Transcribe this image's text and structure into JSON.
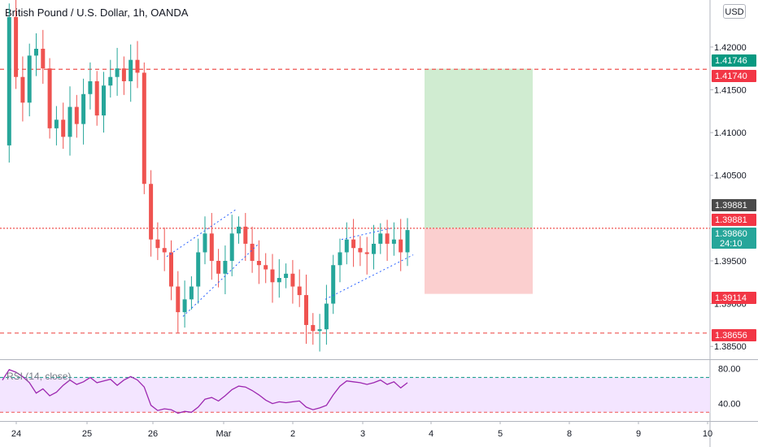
{
  "header": {
    "title": "British Pound / U.S. Dollar, 1h, OANDA",
    "currency_button": "USD"
  },
  "colors": {
    "up": "#26a69a",
    "down": "#ef5350",
    "ma": "#434651",
    "take_profit_zone": "#d0ecd1",
    "stop_zone": "#fbcfcf",
    "price_tag_teal": "#26a69a",
    "price_tag_red": "#f23645",
    "price_tag_green": "#089981",
    "price_tag_dark": "#4a4a4a",
    "rsi_line": "#9c27b0",
    "rsi_band": "#f3e5ff",
    "rsi_level": "#089981",
    "channel": "#2962ff"
  },
  "chart_data": [
    {
      "type": "candlestick",
      "title": "British Pound / U.S. Dollar, 1h, OANDA",
      "ylim": [
        1.3835,
        1.4255
      ],
      "y_ticks": [
        "1.38500",
        "1.39000",
        "1.39500",
        "1.40500",
        "1.41000",
        "1.41500",
        "1.42000"
      ],
      "x_ticks": [
        "24",
        "25",
        "26",
        "Mar",
        "2",
        "3",
        "4",
        "5",
        "8",
        "9",
        "10"
      ],
      "ohlc_path": [
        1.4085,
        1.4235,
        1.4165,
        1.4135,
        1.419,
        1.4198,
        1.4175,
        1.4105,
        1.4115,
        1.4095,
        1.413,
        1.411,
        1.4145,
        1.416,
        1.412,
        1.4155,
        1.4165,
        1.4175,
        1.416,
        1.4185,
        1.417,
        1.404,
        1.3975,
        1.3965,
        1.396,
        1.392,
        1.389,
        1.3905,
        1.392,
        1.396,
        1.3982,
        1.395,
        1.3935,
        1.395,
        1.3982,
        1.399,
        1.397,
        1.395,
        1.3945,
        1.394,
        1.3925,
        1.393,
        1.3935,
        1.392,
        1.391,
        1.3875,
        1.3868,
        1.387,
        1.39,
        1.3945,
        1.396,
        1.3975,
        1.3965,
        1.396,
        1.3958,
        1.397,
        1.3982,
        1.397,
        1.3975,
        1.396,
        1.3986
      ],
      "horizontal_levels": [
        {
          "value": 1.4174,
          "label": "1.41740",
          "style": "dashed",
          "color": "red"
        },
        {
          "value": 1.39881,
          "label": "1.39881",
          "style": "dotted",
          "color": "red"
        },
        {
          "value": 1.38656,
          "label": "1.38656",
          "style": "dashed",
          "color": "red"
        }
      ],
      "price_tags": [
        {
          "value": 1.41746,
          "label": "1.41746",
          "color": "green"
        },
        {
          "value": 1.4174,
          "label": "1.41740",
          "color": "red"
        },
        {
          "value": 1.39881,
          "label": "1.39881",
          "color": "dark"
        },
        {
          "value": 1.39881,
          "label": "1.39881",
          "color": "red"
        },
        {
          "value": 1.3986,
          "label": "1.39860",
          "sublabel": "24:10",
          "color": "teal"
        },
        {
          "value": 1.39114,
          "label": "1.39114",
          "color": "red"
        },
        {
          "value": 1.38656,
          "label": "1.38656",
          "color": "red"
        }
      ],
      "position": {
        "type": "long",
        "entry": 1.39881,
        "target": 1.41746,
        "stop": 1.39114
      }
    },
    {
      "type": "line",
      "title": "RSI (14, close)",
      "ylim": [
        20,
        90
      ],
      "y_ticks": [
        "80.00",
        "40.00"
      ],
      "levels": [
        70,
        30
      ],
      "values": [
        67,
        79,
        76,
        71,
        64,
        52,
        57,
        49,
        53,
        61,
        67,
        62,
        65,
        70,
        64,
        66,
        68,
        61,
        67,
        71,
        67,
        59,
        38,
        32,
        34,
        33,
        29,
        31,
        30,
        36,
        45,
        47,
        43,
        49,
        56,
        60,
        59,
        55,
        50,
        44,
        40,
        42,
        41,
        42,
        43,
        36,
        33,
        35,
        38,
        50,
        60,
        66,
        65,
        64,
        62,
        64,
        67,
        62,
        65,
        58,
        64
      ]
    }
  ]
}
